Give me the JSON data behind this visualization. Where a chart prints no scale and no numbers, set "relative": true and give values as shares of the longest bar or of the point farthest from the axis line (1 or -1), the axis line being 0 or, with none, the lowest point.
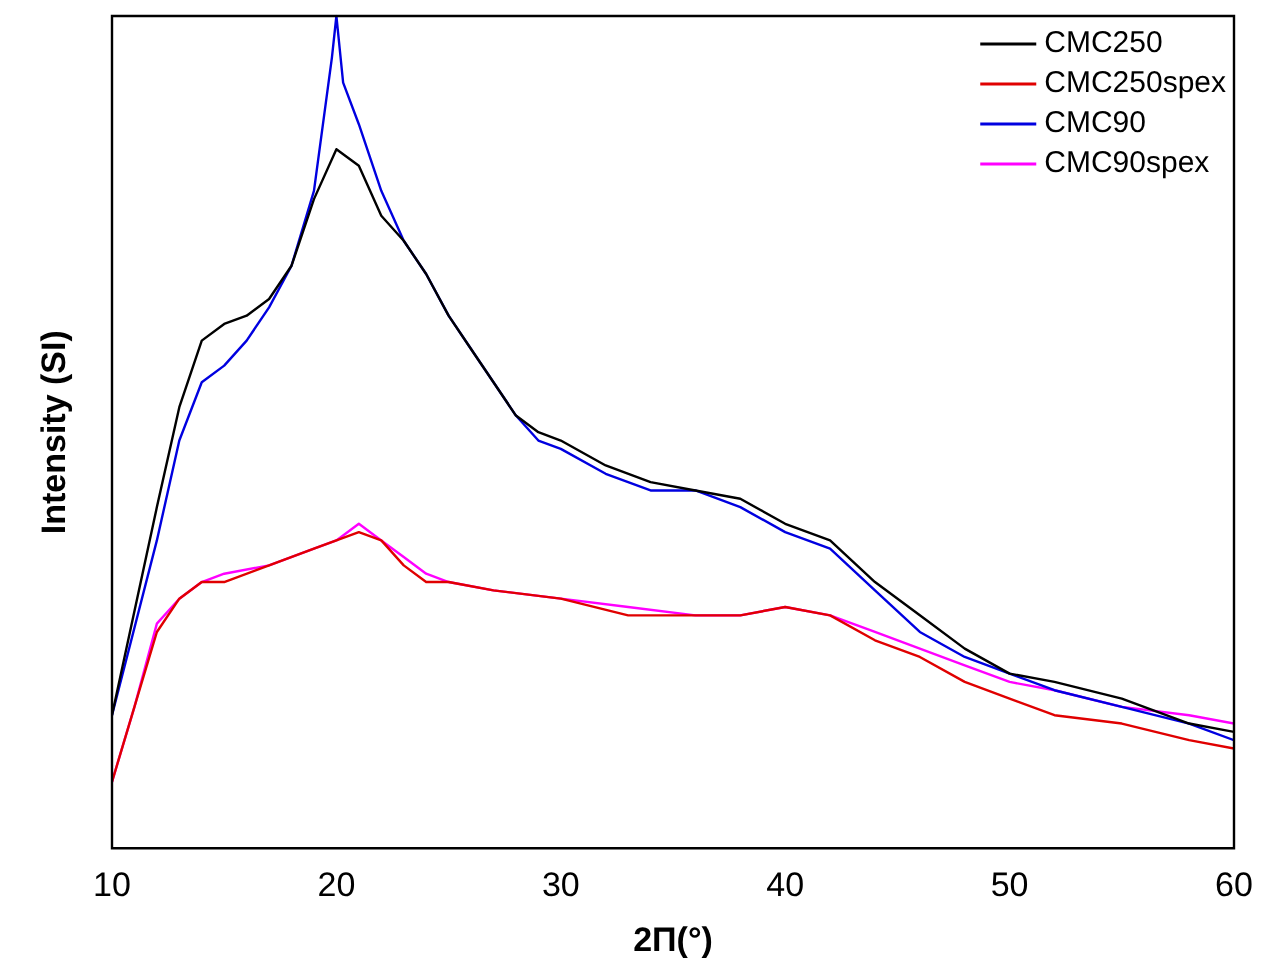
{
  "chart_data": {
    "type": "line",
    "relative": true,
    "xlabel": "2Π(°)",
    "ylabel": "Intensity (SI)",
    "xlim": [
      10,
      60
    ],
    "xticks": [
      10,
      20,
      30,
      40,
      50,
      60
    ],
    "grid": false,
    "legend": "top right",
    "marker": "none",
    "line_style": "solid",
    "series": [
      {
        "name": "CMC250",
        "color": "#000000",
        "x": [
          10,
          12,
          13,
          14,
          15,
          16,
          17,
          18,
          19,
          20,
          21,
          22,
          23,
          24,
          25,
          26,
          27,
          28,
          29,
          30,
          32,
          34,
          36,
          38,
          40,
          42,
          44,
          46,
          48,
          50,
          52,
          55,
          58,
          60
        ],
        "values": [
          0.16,
          0.41,
          0.53,
          0.61,
          0.63,
          0.64,
          0.66,
          0.7,
          0.78,
          0.84,
          0.82,
          0.76,
          0.73,
          0.69,
          0.64,
          0.6,
          0.56,
          0.52,
          0.5,
          0.49,
          0.46,
          0.44,
          0.43,
          0.42,
          0.39,
          0.37,
          0.32,
          0.28,
          0.24,
          0.21,
          0.2,
          0.18,
          0.15,
          0.14
        ]
      },
      {
        "name": "CMC250spex",
        "color": "#e00000",
        "x": [
          10,
          11,
          12,
          13,
          14,
          15,
          17,
          19,
          20,
          21,
          22,
          23,
          24,
          25,
          27,
          30,
          33,
          36,
          38,
          40,
          42,
          44,
          46,
          48,
          50,
          52,
          55,
          58,
          60
        ],
        "values": [
          0.08,
          0.17,
          0.26,
          0.3,
          0.32,
          0.32,
          0.34,
          0.36,
          0.37,
          0.38,
          0.37,
          0.34,
          0.32,
          0.32,
          0.31,
          0.3,
          0.28,
          0.28,
          0.28,
          0.29,
          0.28,
          0.25,
          0.23,
          0.2,
          0.18,
          0.16,
          0.15,
          0.13,
          0.12
        ]
      },
      {
        "name": "CMC90",
        "color": "#0000e0",
        "x": [
          10,
          12,
          13,
          14,
          15,
          16,
          17,
          18,
          19,
          19.8,
          20,
          20.3,
          21,
          22,
          23,
          24,
          25,
          26,
          27,
          28,
          29,
          30,
          32,
          34,
          36,
          38,
          40,
          42,
          44,
          46,
          48,
          50,
          52,
          55,
          58,
          60
        ],
        "values": [
          0.16,
          0.37,
          0.49,
          0.56,
          0.58,
          0.61,
          0.65,
          0.7,
          0.79,
          0.95,
          1,
          0.92,
          0.87,
          0.79,
          0.73,
          0.69,
          0.64,
          0.6,
          0.56,
          0.52,
          0.49,
          0.48,
          0.45,
          0.43,
          0.43,
          0.41,
          0.38,
          0.36,
          0.31,
          0.26,
          0.23,
          0.21,
          0.19,
          0.17,
          0.15,
          0.13
        ]
      },
      {
        "name": "CMC90spex",
        "color": "#ff00ff",
        "x": [
          10,
          11,
          12,
          13,
          14,
          15,
          17,
          19,
          20,
          21,
          22,
          23,
          24,
          25,
          27,
          30,
          33,
          36,
          38,
          40,
          42,
          44,
          46,
          48,
          50,
          52,
          55,
          58,
          60
        ],
        "values": [
          0.08,
          0.17,
          0.27,
          0.3,
          0.32,
          0.33,
          0.34,
          0.36,
          0.37,
          0.39,
          0.37,
          0.35,
          0.33,
          0.32,
          0.31,
          0.3,
          0.29,
          0.28,
          0.28,
          0.29,
          0.28,
          0.26,
          0.24,
          0.22,
          0.2,
          0.19,
          0.17,
          0.16,
          0.15
        ]
      }
    ]
  }
}
